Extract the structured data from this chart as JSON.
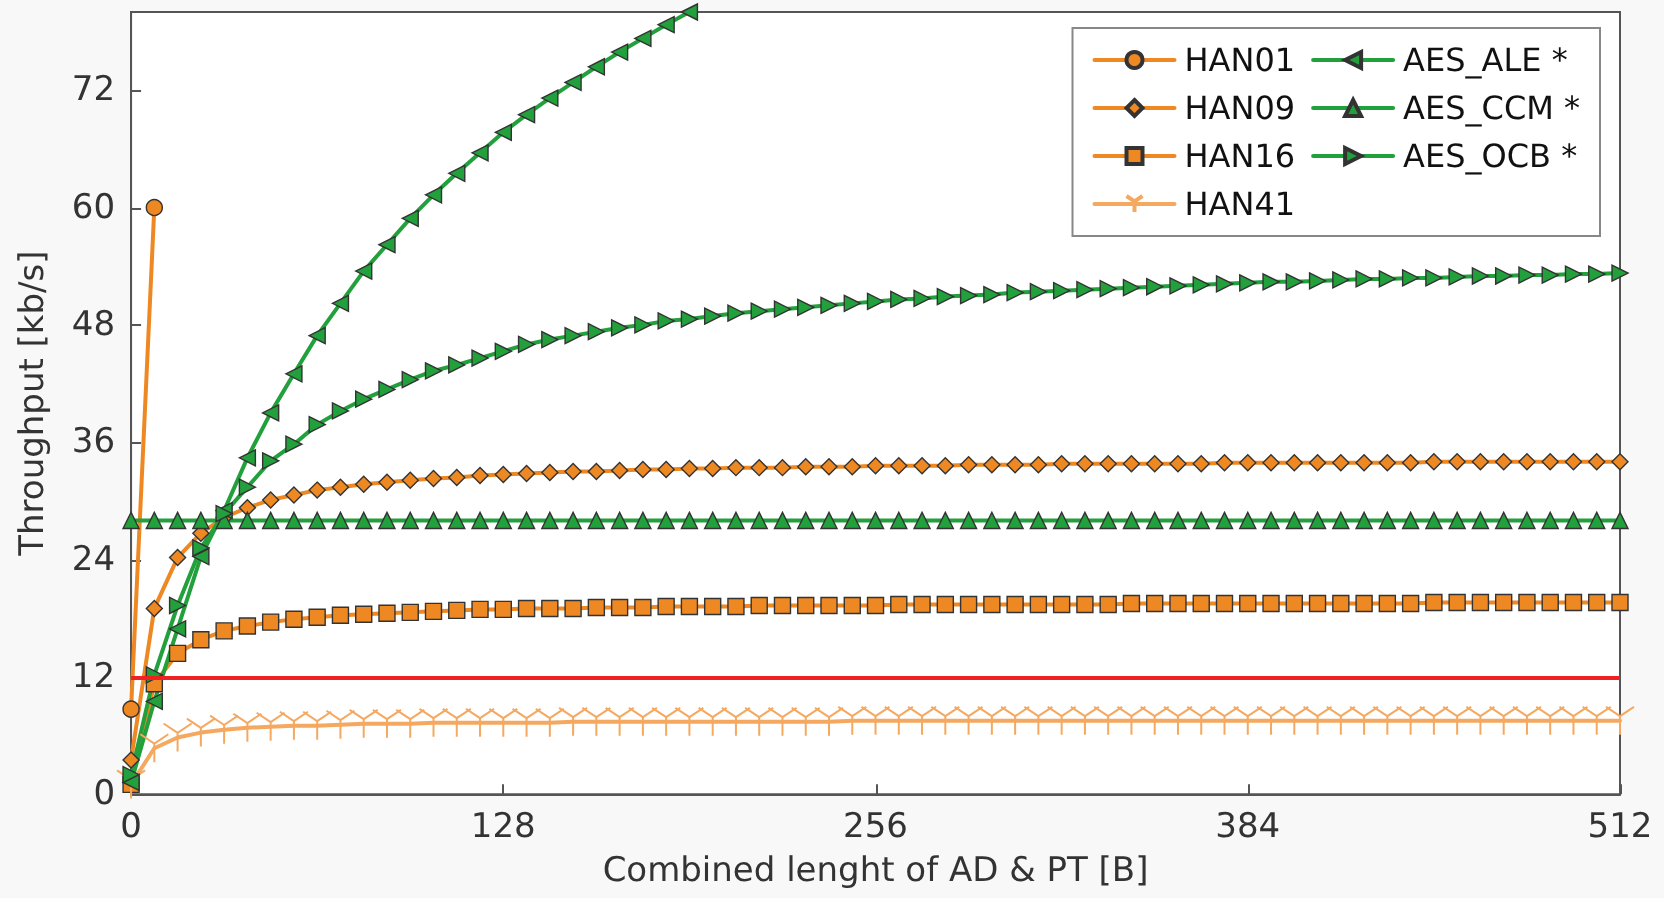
{
  "chart_data": {
    "type": "line",
    "xlabel": "Combined lenght of AD & PT [B]",
    "ylabel": "Throughput [kb/s]",
    "xlim": [
      0,
      512
    ],
    "xticks": [
      0,
      128,
      256,
      384,
      512
    ],
    "ylim": [
      0,
      80
    ],
    "yticks": [
      0,
      12,
      24,
      36,
      48,
      60,
      72
    ],
    "grid": false,
    "legend": "top right",
    "line_style": "solid",
    "x": [
      0,
      8,
      16,
      24,
      32,
      40,
      48,
      56,
      64,
      72,
      80,
      88,
      96,
      104,
      112,
      120,
      128,
      136,
      144,
      152,
      160,
      168,
      176,
      184,
      192,
      200,
      208,
      216,
      224,
      232,
      240,
      248,
      256,
      264,
      272,
      280,
      288,
      296,
      304,
      312,
      320,
      328,
      336,
      344,
      352,
      360,
      368,
      376,
      384,
      392,
      400,
      408,
      416,
      424,
      432,
      440,
      448,
      456,
      464,
      472,
      480,
      488,
      496,
      504,
      512
    ],
    "series": [
      {
        "name": "HAN01",
        "color": "#ee8822",
        "marker": "circle",
        "x": [
          0,
          8
        ],
        "values": [
          8.7,
          60
        ]
      },
      {
        "name": "HAN09",
        "color": "#ee8822",
        "marker": "diamond",
        "values": [
          3.5,
          19.0,
          24.2,
          26.7,
          28.3,
          29.3,
          30.1,
          30.6,
          31.1,
          31.4,
          31.7,
          31.9,
          32.1,
          32.3,
          32.4,
          32.6,
          32.7,
          32.8,
          32.9,
          33.0,
          33.0,
          33.1,
          33.2,
          33.2,
          33.3,
          33.3,
          33.4,
          33.4,
          33.4,
          33.5,
          33.5,
          33.5,
          33.6,
          33.6,
          33.6,
          33.6,
          33.7,
          33.7,
          33.7,
          33.7,
          33.8,
          33.8,
          33.8,
          33.8,
          33.8,
          33.8,
          33.8,
          33.9,
          33.9,
          33.9,
          33.9,
          33.9,
          33.9,
          33.9,
          33.9,
          33.9,
          34.0,
          34.0,
          34.0,
          34.0,
          34.0,
          34.0,
          34.0,
          34.0,
          34.0
        ]
      },
      {
        "name": "HAN16",
        "color": "#ee8822",
        "marker": "square",
        "values": [
          1.0,
          11.3,
          14.4,
          15.8,
          16.7,
          17.2,
          17.6,
          17.9,
          18.1,
          18.3,
          18.4,
          18.5,
          18.6,
          18.7,
          18.8,
          18.9,
          18.9,
          19.0,
          19.0,
          19.0,
          19.1,
          19.1,
          19.1,
          19.2,
          19.2,
          19.2,
          19.2,
          19.3,
          19.3,
          19.3,
          19.3,
          19.3,
          19.3,
          19.4,
          19.4,
          19.4,
          19.4,
          19.4,
          19.4,
          19.4,
          19.4,
          19.4,
          19.4,
          19.5,
          19.5,
          19.5,
          19.5,
          19.5,
          19.5,
          19.5,
          19.5,
          19.5,
          19.5,
          19.5,
          19.5,
          19.5,
          19.6,
          19.6,
          19.6,
          19.6,
          19.6,
          19.6,
          19.6,
          19.6,
          19.6
        ]
      },
      {
        "name": "HAN41",
        "color": "#f5a860",
        "marker": "cross",
        "values": [
          1.0,
          4.7,
          5.8,
          6.3,
          6.6,
          6.8,
          6.9,
          7.0,
          7.0,
          7.1,
          7.2,
          7.2,
          7.2,
          7.3,
          7.3,
          7.3,
          7.3,
          7.3,
          7.3,
          7.4,
          7.4,
          7.4,
          7.4,
          7.4,
          7.4,
          7.4,
          7.4,
          7.4,
          7.4,
          7.4,
          7.4,
          7.5,
          7.5,
          7.5,
          7.5,
          7.5,
          7.5,
          7.5,
          7.5,
          7.5,
          7.5,
          7.5,
          7.5,
          7.5,
          7.5,
          7.5,
          7.5,
          7.5,
          7.5,
          7.5,
          7.5,
          7.5,
          7.5,
          7.5,
          7.5,
          7.5,
          7.5,
          7.5,
          7.5,
          7.5,
          7.5,
          7.5,
          7.5,
          7.5,
          7.5
        ]
      },
      {
        "name": "AES_ALE *",
        "color": "#22a03c",
        "marker": "triangle-left",
        "x": [
          0,
          8,
          16,
          24,
          32,
          40,
          48,
          56,
          64,
          72,
          80,
          88,
          96,
          104,
          112,
          120,
          128,
          136,
          144,
          152,
          160,
          168,
          176,
          184,
          192
        ],
        "values": [
          1.2,
          9.5,
          16.9,
          24.3,
          29.0,
          34.4,
          39.0,
          43.0,
          46.9,
          50.2,
          53.5,
          56.2,
          58.9,
          61.3,
          63.5,
          65.6,
          67.7,
          69.5,
          71.2,
          72.8,
          74.4,
          75.9,
          77.3,
          78.7,
          80.0
        ]
      },
      {
        "name": "AES_CCM *",
        "color": "#22a03c",
        "marker": "triangle",
        "values": [
          28,
          28,
          28,
          28,
          28,
          28,
          28,
          28,
          28,
          28,
          28,
          28,
          28,
          28,
          28,
          28,
          28,
          28,
          28,
          28,
          28,
          28,
          28,
          28,
          28,
          28,
          28,
          28,
          28,
          28,
          28,
          28,
          28,
          28,
          28,
          28,
          28,
          28,
          28,
          28,
          28,
          28,
          28,
          28,
          28,
          28,
          28,
          28,
          28,
          28,
          28,
          28,
          28,
          28,
          28,
          28,
          28,
          28,
          28,
          28,
          28,
          28,
          28,
          28,
          28
        ]
      },
      {
        "name": "AES_OCB *",
        "color": "#22a03c",
        "marker": "triangle-right",
        "values": [
          2.0,
          12.2,
          19.3,
          25.2,
          28.7,
          31.4,
          34.1,
          35.8,
          37.8,
          39.2,
          40.4,
          41.4,
          42.4,
          43.3,
          43.9,
          44.6,
          45.3,
          46.0,
          46.5,
          46.9,
          47.3,
          47.7,
          48.0,
          48.4,
          48.6,
          48.9,
          49.2,
          49.4,
          49.6,
          49.8,
          50.0,
          50.2,
          50.4,
          50.6,
          50.7,
          50.9,
          51.0,
          51.1,
          51.3,
          51.4,
          51.5,
          51.6,
          51.7,
          51.8,
          51.9,
          52.0,
          52.1,
          52.2,
          52.3,
          52.4,
          52.4,
          52.5,
          52.6,
          52.7,
          52.7,
          52.8,
          52.8,
          52.9,
          53.0,
          53.0,
          53.1,
          53.1,
          53.2,
          53.2,
          53.3
        ]
      }
    ],
    "ref_lines": [
      {
        "axis": "y",
        "value": 12,
        "color": "#ee2222"
      }
    ]
  }
}
